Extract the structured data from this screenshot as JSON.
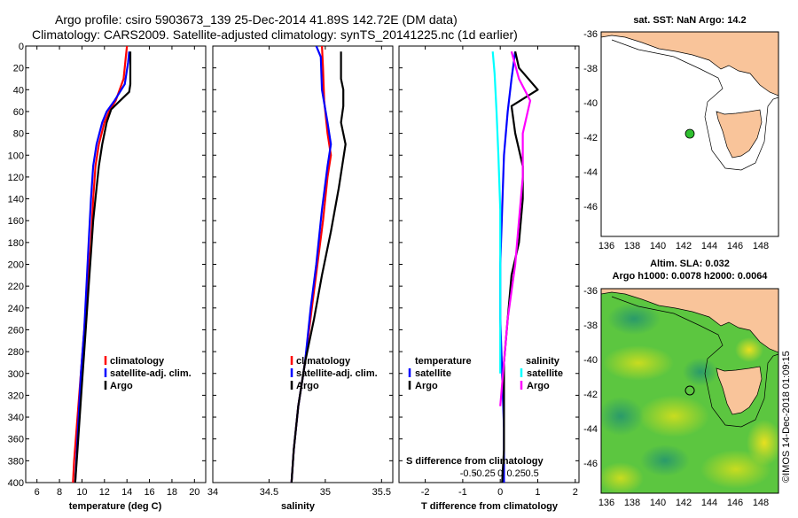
{
  "header": {
    "line1": "Argo profile: csiro 5903673_139 25-Dec-2014 41.89S 142.72E (DM data)",
    "line2": "Climatology: CARS2009. Satellite-adjusted climatology: synTS_20141225.nc (1d earlier)"
  },
  "watermark": "©IMOS 14-Dec-2018 01:09:15",
  "colors": {
    "climatology": "#ff0000",
    "satellite": "#0000ff",
    "argo": "#000000",
    "sal_sat": "#00ffff",
    "sal_argo": "#ff00ff",
    "land": "#f9c49a"
  },
  "chart_data": [
    {
      "type": "line",
      "id": "temperature",
      "xlabel": "temperature (deg C)",
      "xlim": [
        5,
        21
      ],
      "ylim": [
        400,
        0
      ],
      "xticks": [
        "6",
        "8",
        "10",
        "12",
        "14",
        "16",
        "18",
        "20"
      ],
      "yticks": [
        "0",
        "20",
        "40",
        "60",
        "80",
        "100",
        "120",
        "140",
        "160",
        "180",
        "200",
        "220",
        "240",
        "260",
        "280",
        "300",
        "320",
        "340",
        "360",
        "380",
        "400"
      ],
      "legend": [
        "climatology",
        "satellite-adj. clim.",
        "Argo"
      ],
      "series": [
        {
          "name": "climatology",
          "color": "#ff0000",
          "points": [
            [
              14,
              0
            ],
            [
              13.9,
              10
            ],
            [
              13.7,
              30
            ],
            [
              13,
              50
            ],
            [
              12.4,
              60
            ],
            [
              12,
              70
            ],
            [
              11.5,
              90
            ],
            [
              11.2,
              110
            ],
            [
              11,
              140
            ],
            [
              10.8,
              180
            ],
            [
              10.5,
              220
            ],
            [
              10.2,
              260
            ],
            [
              9.9,
              300
            ],
            [
              9.6,
              340
            ],
            [
              9.3,
              380
            ],
            [
              9.2,
              400
            ]
          ]
        },
        {
          "name": "satellite-adj. clim.",
          "color": "#0000ff",
          "points": [
            [
              14.2,
              5
            ],
            [
              14.1,
              15
            ],
            [
              13.8,
              35
            ],
            [
              12.9,
              50
            ],
            [
              12.2,
              60
            ],
            [
              11.8,
              70
            ],
            [
              11.3,
              90
            ],
            [
              11,
              110
            ],
            [
              10.8,
              140
            ],
            [
              10.6,
              180
            ],
            [
              10.4,
              220
            ],
            [
              10.2,
              260
            ],
            [
              9.9,
              300
            ],
            [
              9.7,
              340
            ],
            [
              9.5,
              380
            ],
            [
              9.4,
              400
            ]
          ]
        },
        {
          "name": "Argo",
          "color": "#000000",
          "points": [
            [
              14.3,
              5
            ],
            [
              14.3,
              20
            ],
            [
              14.3,
              35
            ],
            [
              14.2,
              42
            ],
            [
              13.4,
              50
            ],
            [
              12.6,
              58
            ],
            [
              12.2,
              70
            ],
            [
              11.8,
              90
            ],
            [
              11.5,
              110
            ],
            [
              11.3,
              130
            ],
            [
              11,
              160
            ],
            [
              10.8,
              190
            ],
            [
              10.6,
              220
            ],
            [
              10.4,
              250
            ],
            [
              10.2,
              280
            ],
            [
              10,
              310
            ],
            [
              9.8,
              340
            ],
            [
              9.6,
              370
            ],
            [
              9.4,
              400
            ]
          ]
        }
      ]
    },
    {
      "type": "line",
      "id": "salinity",
      "xlabel": "salinity",
      "xlim": [
        34,
        35.6
      ],
      "ylim": [
        400,
        0
      ],
      "xticks": [
        "34",
        "34.5",
        "35",
        "35.5"
      ],
      "legend": [
        "climatology",
        "satellite-adj. clim.",
        "Argo"
      ],
      "series": [
        {
          "name": "climatology",
          "color": "#ff0000",
          "points": [
            [
              34.97,
              0
            ],
            [
              34.98,
              20
            ],
            [
              34.99,
              50
            ],
            [
              35.02,
              80
            ],
            [
              35.05,
              100
            ],
            [
              35.02,
              120
            ],
            [
              34.98,
              160
            ],
            [
              34.93,
              200
            ],
            [
              34.88,
              240
            ],
            [
              34.82,
              290
            ],
            [
              34.76,
              330
            ],
            [
              34.72,
              370
            ],
            [
              34.7,
              400
            ]
          ]
        },
        {
          "name": "satellite-adj. clim.",
          "color": "#0000ff",
          "points": [
            [
              34.92,
              0
            ],
            [
              34.96,
              10
            ],
            [
              34.97,
              40
            ],
            [
              35.02,
              70
            ],
            [
              35.05,
              90
            ],
            [
              35.02,
              110
            ],
            [
              34.97,
              150
            ],
            [
              34.92,
              200
            ],
            [
              34.87,
              240
            ],
            [
              34.82,
              290
            ],
            [
              34.76,
              330
            ],
            [
              34.72,
              370
            ],
            [
              34.7,
              400
            ]
          ]
        },
        {
          "name": "Argo",
          "color": "#000000",
          "points": [
            [
              35.14,
              5
            ],
            [
              35.14,
              30
            ],
            [
              35.16,
              40
            ],
            [
              35.16,
              55
            ],
            [
              35.14,
              70
            ],
            [
              35.18,
              90
            ],
            [
              35.12,
              130
            ],
            [
              35.05,
              170
            ],
            [
              34.97,
              210
            ],
            [
              34.9,
              250
            ],
            [
              34.82,
              290
            ],
            [
              34.76,
              330
            ],
            [
              34.72,
              370
            ],
            [
              34.7,
              400
            ]
          ]
        }
      ]
    },
    {
      "type": "line",
      "id": "differences",
      "xlabel": "T difference from climatology",
      "xlabel_top": "S difference from climatology",
      "xlim": [
        -2.7,
        2.1
      ],
      "ylim": [
        400,
        0
      ],
      "xticks": [
        "-2",
        "-1",
        "0",
        "1",
        "2"
      ],
      "xticks_top": [
        "-0.5",
        "-0.25",
        "0",
        "0.25",
        "0.5"
      ],
      "legend_left_title": "temperature",
      "legend_right_title": "salinity",
      "legend_left": [
        "satellite",
        "Argo"
      ],
      "legend_right": [
        "satellite",
        "Argo"
      ],
      "series": [
        {
          "name": "T satellite",
          "color": "#0000ff",
          "points": [
            [
              0.4,
              5
            ],
            [
              0.3,
              30
            ],
            [
              0.2,
              60
            ],
            [
              0.1,
              100
            ],
            [
              0.05,
              150
            ],
            [
              0,
              200
            ],
            [
              0,
              250
            ],
            [
              0.05,
              300
            ],
            [
              0.1,
              350
            ],
            [
              0.1,
              400
            ]
          ]
        },
        {
          "name": "T Argo",
          "color": "#000000",
          "points": [
            [
              0.4,
              5
            ],
            [
              0.5,
              20
            ],
            [
              1.0,
              40
            ],
            [
              0.3,
              55
            ],
            [
              0.4,
              80
            ],
            [
              0.6,
              110
            ],
            [
              0.6,
              140
            ],
            [
              0.5,
              180
            ],
            [
              0.3,
              210
            ],
            [
              0.2,
              250
            ],
            [
              0.1,
              290
            ],
            [
              0.1,
              330
            ],
            [
              0.1,
              370
            ],
            [
              0.05,
              400
            ]
          ]
        },
        {
          "name": "S satellite",
          "color": "#00ffff",
          "points": [
            [
              -0.2,
              5
            ],
            [
              -0.15,
              25
            ],
            [
              -0.1,
              60
            ],
            [
              -0.05,
              100
            ],
            [
              0,
              150
            ],
            [
              0,
              200
            ],
            [
              0,
              250
            ],
            [
              0,
              300
            ]
          ]
        },
        {
          "name": "S Argo",
          "color": "#ff00ff",
          "points": [
            [
              0.3,
              5
            ],
            [
              0.5,
              30
            ],
            [
              0.8,
              50
            ],
            [
              0.6,
              80
            ],
            [
              0.6,
              120
            ],
            [
              0.5,
              160
            ],
            [
              0.4,
              200
            ],
            [
              0.2,
              250
            ],
            [
              0.1,
              290
            ],
            [
              0,
              330
            ]
          ]
        }
      ]
    },
    {
      "type": "scatter",
      "id": "sst_map",
      "title": "sat. SST: NaN Argo: 14.2",
      "xticks": [
        "136",
        "138",
        "140",
        "142",
        "144",
        "146",
        "148"
      ],
      "yticks": [
        "-36",
        "-38",
        "-40",
        "-42",
        "-44",
        "-46"
      ],
      "point": {
        "lon": 142.72,
        "lat": -41.89
      }
    },
    {
      "type": "heatmap",
      "id": "sla_map",
      "title": "Altim. SLA: 0.032",
      "subtitle": "Argo h1000: 0.0078 h2000: 0.0064",
      "xticks": [
        "136",
        "138",
        "140",
        "142",
        "144",
        "146",
        "148"
      ],
      "yticks": [
        "-36",
        "-38",
        "-40",
        "-42",
        "-44",
        "-46"
      ],
      "point": {
        "lon": 142.72,
        "lat": -41.89
      }
    }
  ]
}
